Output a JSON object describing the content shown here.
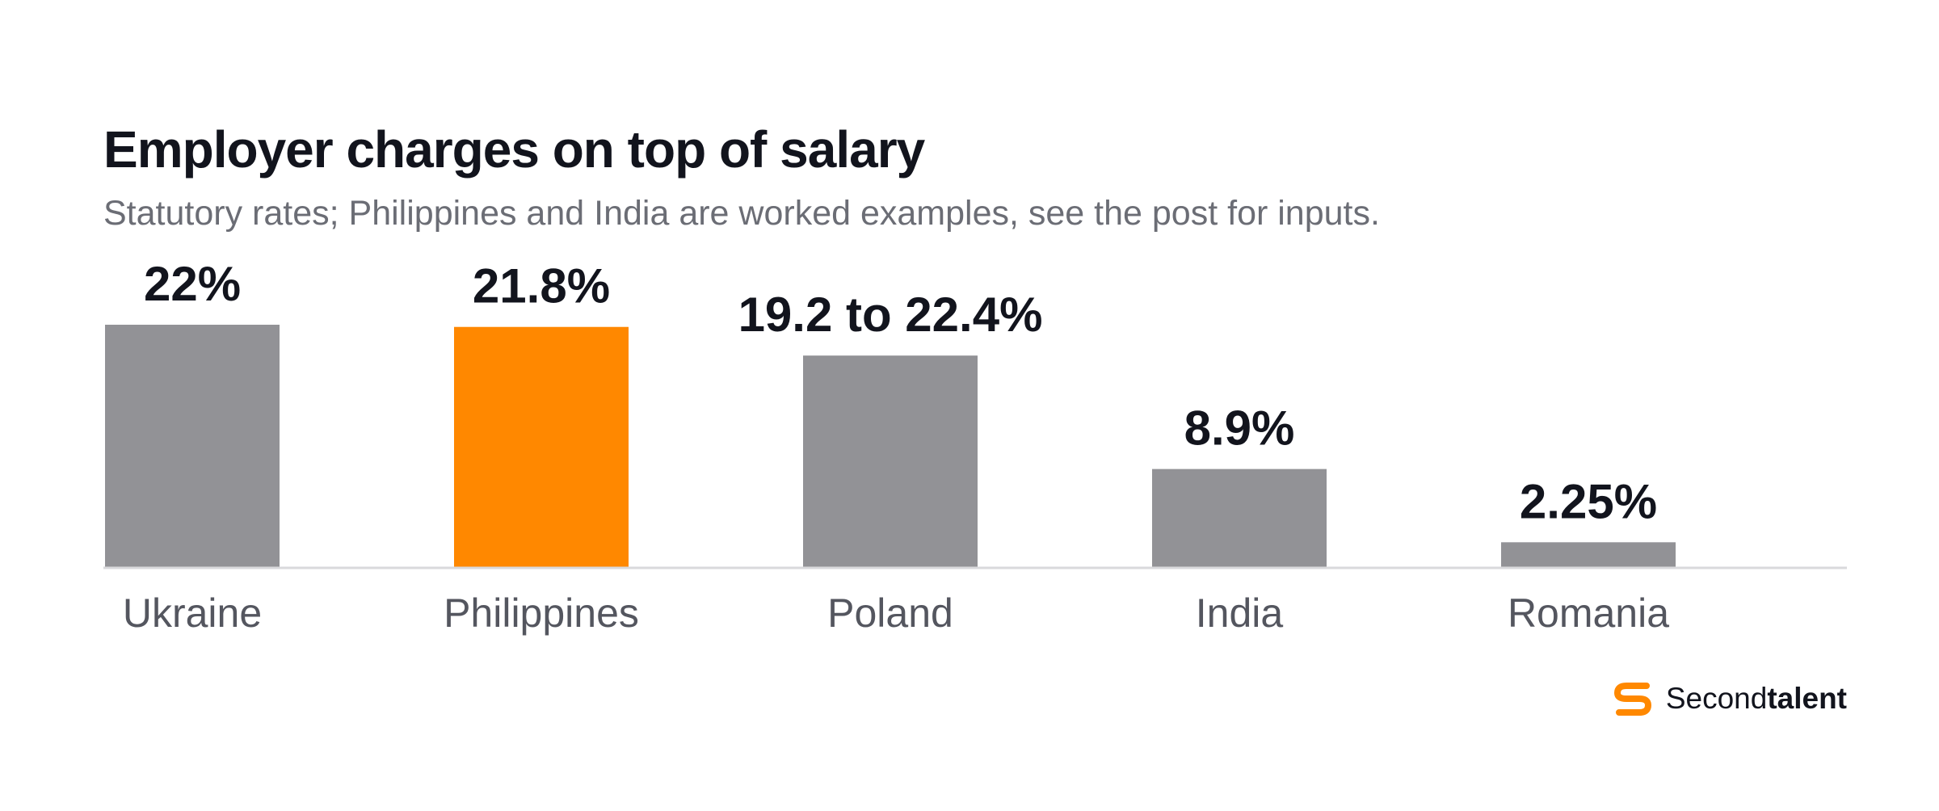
{
  "title": "Employer charges on top of salary",
  "subtitle": "Statutory rates; Philippines and India are worked examples, see the post for inputs.",
  "brand": {
    "name_regular": "Second",
    "name_bold": "talent",
    "logo_icon": "secondtalent-s-logo-icon"
  },
  "colors": {
    "default_bar": "#929296",
    "highlight_bar": "#ff8800",
    "baseline": "#d9d9dc"
  },
  "chart_data": {
    "type": "bar",
    "title": "Employer charges on top of salary",
    "subtitle": "Statutory rates; Philippines and India are worked examples, see the post for inputs.",
    "categories": [
      "Ukraine",
      "Philippines",
      "Poland",
      "India",
      "Romania"
    ],
    "values": [
      22,
      21.8,
      19.2,
      8.9,
      2.25
    ],
    "value_labels": [
      "22%",
      "21.8%",
      "19.2 to 22.4%",
      "8.9%",
      "2.25%"
    ],
    "highlight": "Philippines",
    "unit": "%",
    "ylim": [
      0,
      22
    ],
    "xlabel": "",
    "ylabel": "",
    "grid": false,
    "legend": "none"
  }
}
